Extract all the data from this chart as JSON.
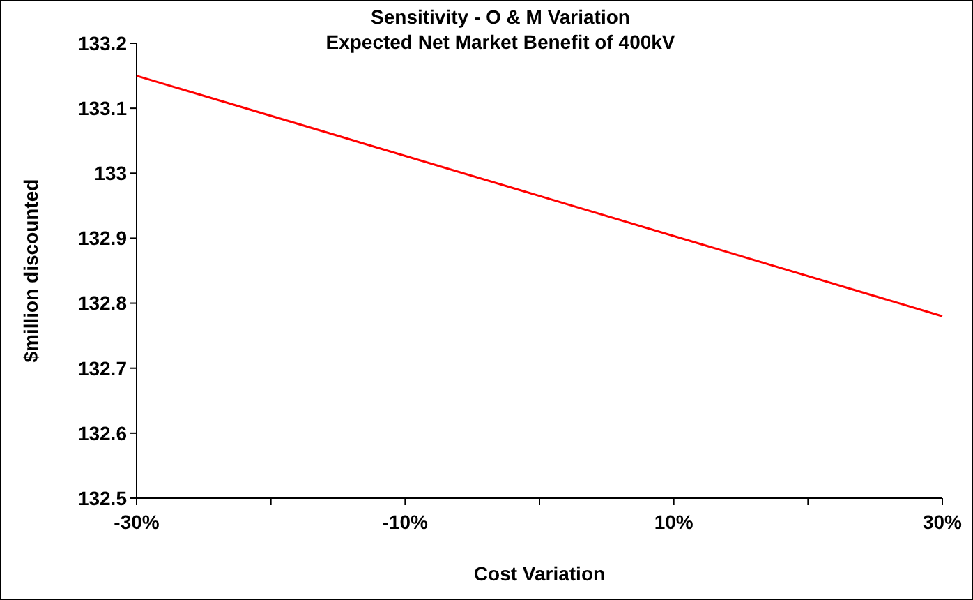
{
  "chart_data": {
    "type": "line",
    "title": "Sensitivity - O & M Variation",
    "subtitle": "Expected Net Market Benefit of 400kV",
    "xlabel": "Cost Variation",
    "ylabel": "$million discounted",
    "x": [
      -30,
      30
    ],
    "series": [
      {
        "color": "#ff0000",
        "values": [
          133.15,
          132.78
        ]
      }
    ],
    "xlim": [
      -30,
      30
    ],
    "xticks": [
      {
        "value": -30,
        "label": "-30%"
      },
      {
        "value": -20,
        "label": null
      },
      {
        "value": -10,
        "label": "-10%"
      },
      {
        "value": 0,
        "label": null
      },
      {
        "value": 10,
        "label": "10%"
      },
      {
        "value": 20,
        "label": null
      },
      {
        "value": 30,
        "label": "30%"
      }
    ],
    "ylim": [
      132.5,
      133.2
    ],
    "yticks": [
      132.5,
      132.6,
      132.7,
      132.8,
      132.9,
      133,
      133.1,
      133.2
    ],
    "grid": false,
    "marker": "none",
    "line_style": "solid"
  }
}
